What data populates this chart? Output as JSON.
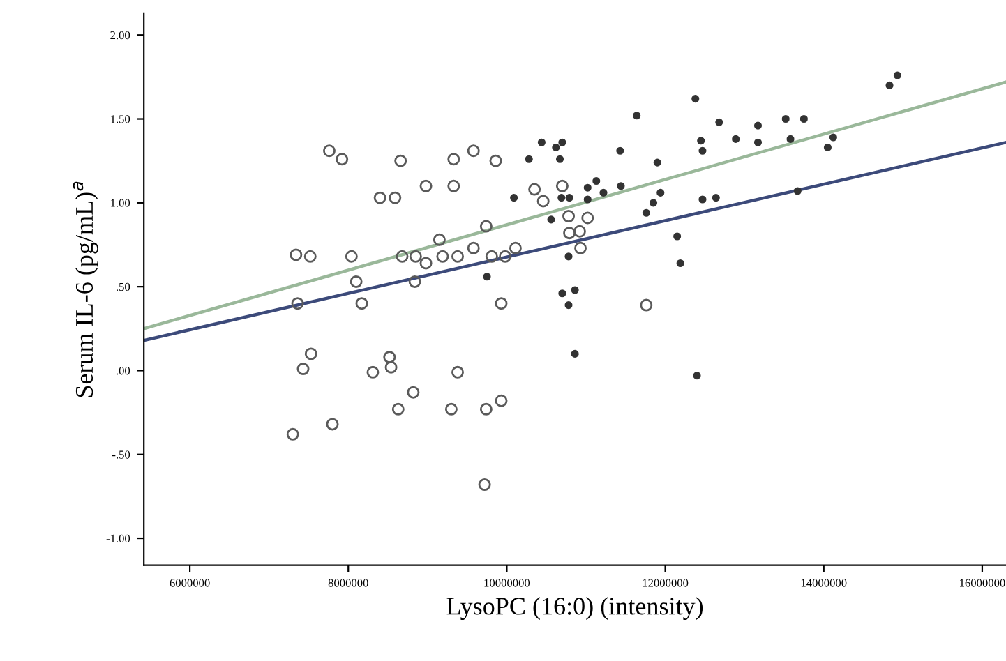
{
  "chart_data": {
    "type": "scatter",
    "xlabel": "LysoPC (16:0) (intensity)",
    "ylabel": "Serum IL-6 (pg/mL)$^{a}$",
    "xlim": [
      5420000,
      16300000
    ],
    "ylim": [
      -1.16,
      2.13
    ],
    "xticks": [
      6000000,
      8000000,
      10000000,
      12000000,
      14000000,
      16000000
    ],
    "yticks": [
      {
        "value": 2.0,
        "label": "2.00"
      },
      {
        "value": 1.5,
        "label": "1.50"
      },
      {
        "value": 1.0,
        "label": "1.00"
      },
      {
        "value": 0.5,
        "label": ".50"
      },
      {
        "value": 0.0,
        "label": ".00"
      },
      {
        "value": -0.5,
        "label": "-.50"
      },
      {
        "value": -1.0,
        "label": "-1.00"
      }
    ],
    "grid": false,
    "legend": false,
    "series": [
      {
        "marker": "circle",
        "color": "#5a5a5a",
        "x": [
          7760000,
          7920000,
          8660000,
          9330000,
          9580000,
          9860000,
          8980000,
          9330000,
          8400000,
          8590000,
          10350000,
          10460000,
          10700000,
          10780000,
          11020000,
          10790000,
          10920000,
          10930000,
          9150000,
          9740000,
          7340000,
          7520000,
          8040000,
          8680000,
          8850000,
          8980000,
          9190000,
          9380000,
          9580000,
          9810000,
          9980000,
          10110000,
          8100000,
          8840000,
          7360000,
          8170000,
          9930000,
          11760000,
          7530000,
          7430000,
          8520000,
          8540000,
          8310000,
          9380000,
          8820000,
          8630000,
          9300000,
          9740000,
          9930000,
          7300000,
          7800000,
          9720000
        ],
        "values": [
          1.31,
          1.26,
          1.25,
          1.26,
          1.31,
          1.25,
          1.1,
          1.1,
          1.03,
          1.03,
          1.08,
          1.01,
          1.1,
          0.92,
          0.91,
          0.82,
          0.83,
          0.73,
          0.78,
          0.86,
          0.69,
          0.68,
          0.68,
          0.68,
          0.68,
          0.64,
          0.68,
          0.68,
          0.73,
          0.68,
          0.68,
          0.73,
          0.53,
          0.53,
          0.4,
          0.4,
          0.4,
          0.39,
          0.1,
          0.01,
          0.08,
          0.02,
          -0.01,
          -0.01,
          -0.13,
          -0.23,
          -0.23,
          -0.23,
          -0.18,
          -0.38,
          -0.32,
          -0.68
        ]
      },
      {
        "marker": "circle",
        "color": "#333333",
        "x": [
          14930000,
          14830000,
          12380000,
          11640000,
          12680000,
          13170000,
          13520000,
          13750000,
          12890000,
          13170000,
          13580000,
          14120000,
          14050000,
          12450000,
          12470000,
          11430000,
          11900000,
          10440000,
          10620000,
          10700000,
          10670000,
          10280000,
          11130000,
          11020000,
          11440000,
          11220000,
          10690000,
          10790000,
          11020000,
          11940000,
          11850000,
          11760000,
          12470000,
          12640000,
          13670000,
          10560000,
          10780000,
          12150000,
          12190000,
          10700000,
          10860000,
          10780000,
          10860000,
          12400000,
          10090000,
          9750000
        ],
        "values": [
          1.76,
          1.7,
          1.62,
          1.52,
          1.48,
          1.46,
          1.5,
          1.5,
          1.38,
          1.36,
          1.38,
          1.39,
          1.33,
          1.37,
          1.31,
          1.31,
          1.24,
          1.36,
          1.33,
          1.36,
          1.26,
          1.26,
          1.13,
          1.09,
          1.1,
          1.06,
          1.03,
          1.03,
          1.02,
          1.06,
          1.0,
          0.94,
          1.02,
          1.03,
          1.07,
          0.9,
          0.68,
          0.8,
          0.64,
          0.46,
          0.48,
          0.39,
          0.1,
          -0.03,
          1.03,
          0.56
        ]
      },
      {
        "type": "line",
        "color": "#3c4a7a",
        "x": [
          5420000,
          16300000
        ],
        "values": [
          0.18,
          1.36
        ]
      },
      {
        "type": "line",
        "color": "#9ab89a",
        "x": [
          5420000,
          16300000
        ],
        "values": [
          0.25,
          1.72
        ]
      }
    ]
  }
}
